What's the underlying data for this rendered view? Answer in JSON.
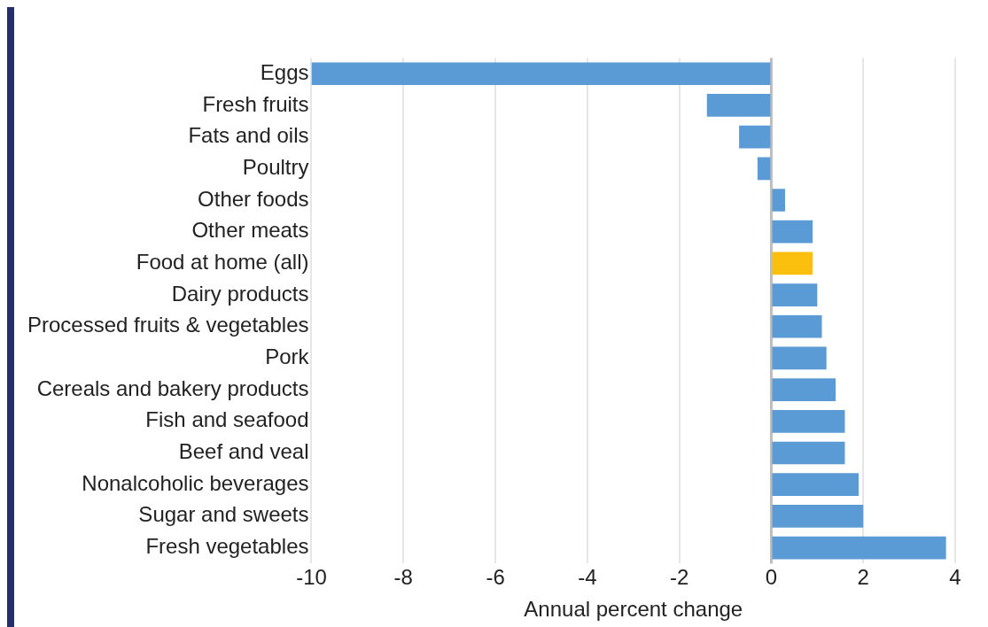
{
  "chart_data": {
    "type": "bar",
    "orientation": "horizontal",
    "xlabel": "Annual percent change",
    "categories": [
      "Eggs",
      "Fresh fruits",
      "Fats and oils",
      "Poultry",
      "Other foods",
      "Other meats",
      "Food at home (all)",
      "Dairy products",
      "Processed fruits & vegetables",
      "Pork",
      "Cereals and bakery products",
      "Fish and seafood",
      "Beef and veal",
      "Nonalcoholic beverages",
      "Sugar and sweets",
      "Fresh vegetables"
    ],
    "values": [
      -10,
      -1.4,
      -0.7,
      -0.3,
      0.3,
      0.9,
      0.9,
      1.0,
      1.1,
      1.2,
      1.4,
      1.6,
      1.6,
      1.9,
      2.0,
      3.8
    ],
    "colors": [
      "#5b9bd5",
      "#5b9bd5",
      "#5b9bd5",
      "#5b9bd5",
      "#5b9bd5",
      "#5b9bd5",
      "#fbbf0e",
      "#5b9bd5",
      "#5b9bd5",
      "#5b9bd5",
      "#5b9bd5",
      "#5b9bd5",
      "#5b9bd5",
      "#5b9bd5",
      "#5b9bd5",
      "#5b9bd5"
    ],
    "xlim": [
      -10,
      4
    ],
    "xticks": [
      -10,
      -8,
      -6,
      -4,
      -2,
      0,
      2,
      4
    ],
    "grid": "x",
    "legend": false
  }
}
